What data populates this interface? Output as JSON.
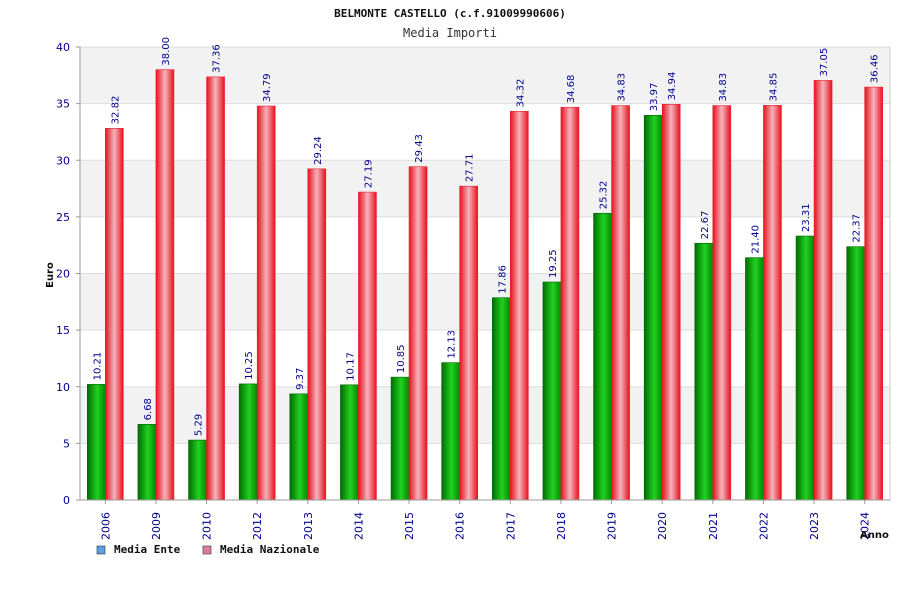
{
  "colors": {
    "ente": "#00b400",
    "ente_dark": "#006400",
    "nazionale": "#e8202e",
    "nazionale_light": "#f2b8c0",
    "legend_ente": "#5aa0e6",
    "legend_nazionale": "#e07aa0",
    "band": "#f2f2f2",
    "grid": "#dddddd"
  },
  "chart_data": {
    "type": "bar",
    "title": "BELMONTE CASTELLO (c.f.91009990606)",
    "subtitle": "Media Importi",
    "xlabel": "Anno",
    "ylabel": "Euro",
    "ylim": [
      0,
      40
    ],
    "yticks": [
      "0",
      "5",
      "10",
      "15",
      "20",
      "25",
      "30",
      "35",
      "40"
    ],
    "grid": true,
    "legend_position": "bottom-left",
    "categories": [
      "2006",
      "2009",
      "2010",
      "2012",
      "2013",
      "2014",
      "2015",
      "2016",
      "2017",
      "2018",
      "2019",
      "2020",
      "2021",
      "2022",
      "2023",
      "2024"
    ],
    "series": [
      {
        "name": "Media Ente",
        "values": [
          10.21,
          6.68,
          5.29,
          10.25,
          9.37,
          10.17,
          10.85,
          12.13,
          17.86,
          19.25,
          25.32,
          33.97,
          22.67,
          21.4,
          23.31,
          22.37
        ],
        "labels": [
          "10.21",
          "6.68",
          "5.29",
          "10.25",
          "9.37",
          "10.17",
          "10.85",
          "12.13",
          "17.86",
          "19.25",
          "25.32",
          "33.97",
          "22.67",
          "21.40",
          "23.31",
          "22.37"
        ]
      },
      {
        "name": "Media Nazionale",
        "values": [
          32.82,
          38.0,
          37.36,
          34.79,
          29.24,
          27.19,
          29.43,
          27.71,
          34.32,
          34.68,
          34.83,
          34.94,
          34.83,
          34.85,
          37.05,
          36.46
        ],
        "labels": [
          "32.82",
          "38.00",
          "37.36",
          "34.79",
          "29.24",
          "27.19",
          "29.43",
          "27.71",
          "34.32",
          "34.68",
          "34.83",
          "34.94",
          "34.83",
          "34.85",
          "37.05",
          "36.46"
        ]
      }
    ]
  }
}
